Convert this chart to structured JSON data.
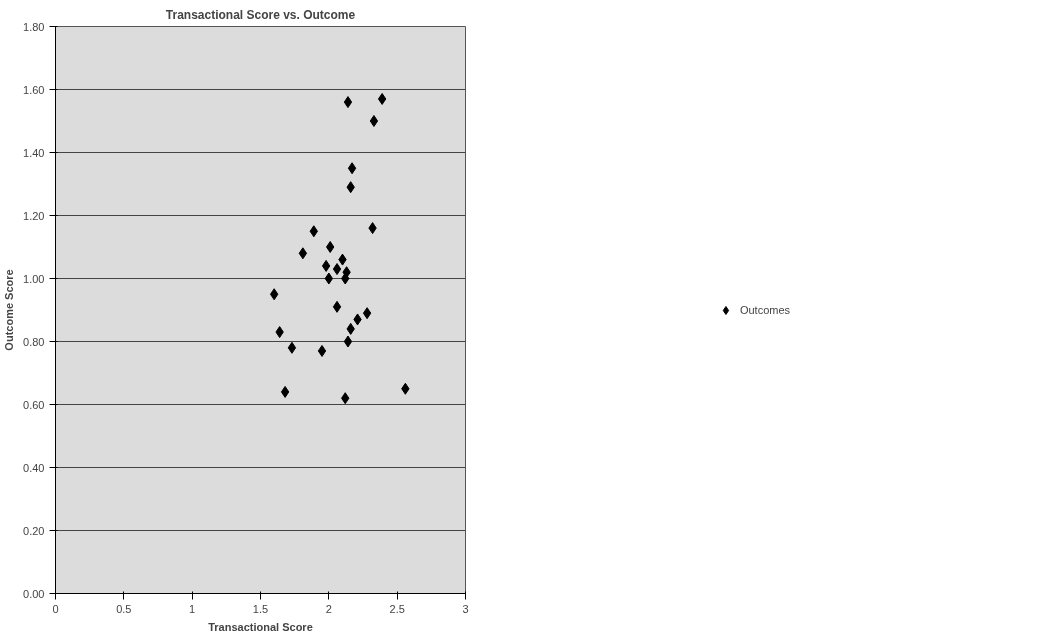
{
  "chart_data": {
    "type": "scatter",
    "title": "Transactional Score vs. Outcome",
    "xlabel": "Transactional Score",
    "ylabel": "Outcome Score",
    "xlim": [
      0,
      3
    ],
    "xticks": [
      0,
      0.5,
      1,
      1.5,
      2,
      2.5,
      3
    ],
    "ylim": [
      0,
      1.8
    ],
    "yticks": [
      {
        "value": 0,
        "label": "0.00"
      },
      {
        "value": 0.2,
        "label": "0.20"
      },
      {
        "value": 0.4,
        "label": "0.40"
      },
      {
        "value": 0.6,
        "label": "0.60"
      },
      {
        "value": 0.8,
        "label": "0.80"
      },
      {
        "value": 1.0,
        "label": "1.00"
      },
      {
        "value": 1.2,
        "label": "1.20"
      },
      {
        "value": 1.4,
        "label": "1.40"
      },
      {
        "value": 1.6,
        "label": "1.60"
      },
      {
        "value": 1.8,
        "label": "1.80"
      }
    ],
    "grid": "y",
    "legend": "right",
    "marker": "diamond",
    "series": [
      {
        "name": "Outcomes",
        "color": "#000000",
        "x": [
          2.14,
          2.39,
          2.33,
          2.17,
          2.16,
          2.32,
          1.89,
          2.01,
          1.81,
          1.98,
          2.1,
          2.06,
          2.13,
          2.12,
          2.0,
          1.6,
          2.06,
          2.28,
          2.21,
          2.16,
          1.64,
          2.14,
          1.73,
          1.95,
          1.68,
          2.12,
          2.56
        ],
        "values": [
          1.56,
          1.57,
          1.5,
          1.35,
          1.29,
          1.16,
          1.15,
          1.1,
          1.08,
          1.04,
          1.06,
          1.03,
          1.02,
          1.0,
          1.0,
          0.95,
          0.91,
          0.89,
          0.87,
          0.84,
          0.83,
          0.8,
          0.78,
          0.77,
          0.64,
          0.62,
          0.65
        ]
      }
    ]
  }
}
